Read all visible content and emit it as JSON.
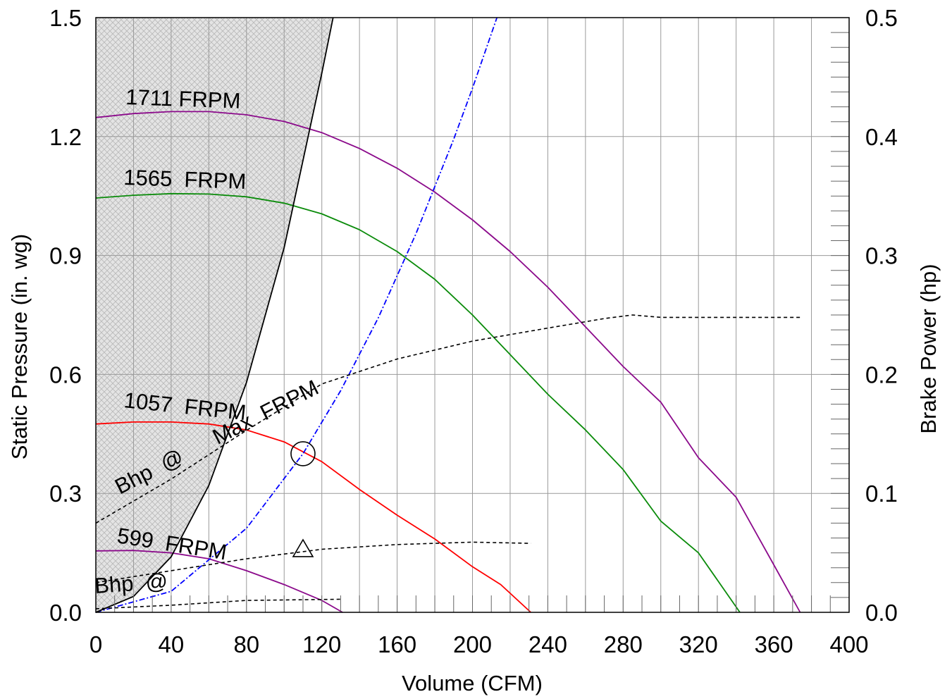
{
  "chart_data": {
    "type": "line",
    "xlabel": "Volume (CFM)",
    "ylabel": "Static Pressure (in. wg)",
    "y2label": "Brake Power (hp)",
    "xlim": [
      0,
      400
    ],
    "ylim": [
      0,
      1.5
    ],
    "y2lim": [
      0,
      0.5
    ],
    "x_ticks": [
      "0",
      "40",
      "80",
      "120",
      "160",
      "200",
      "240",
      "280",
      "320",
      "360",
      "400"
    ],
    "y_ticks": [
      "0.0",
      "0.3",
      "0.6",
      "0.9",
      "1.2",
      "1.5"
    ],
    "y2_ticks": [
      "0.0",
      "0.1",
      "0.2",
      "0.3",
      "0.4",
      "0.5"
    ],
    "grid": true,
    "colors": {
      "rpm_1711": "#8b0a8b",
      "rpm_1565": "#0a8b0a",
      "rpm_1057": "#ff0000",
      "rpm_599": "#8b0a8b",
      "system_curve": "#0000ff",
      "bhp": "#000000",
      "region_fill": "#d8d8d8"
    },
    "series": [
      {
        "key": "rpm_1711",
        "label": "1711 FRPM",
        "axis": "left",
        "x": [
          0,
          20,
          40,
          60,
          80,
          100,
          120,
          140,
          160,
          180,
          200,
          220,
          240,
          260,
          280,
          300,
          320,
          340,
          360,
          374
        ],
        "y": [
          1.248,
          1.258,
          1.263,
          1.263,
          1.255,
          1.238,
          1.21,
          1.17,
          1.12,
          1.06,
          0.99,
          0.91,
          0.82,
          0.72,
          0.62,
          0.53,
          0.39,
          0.29,
          0.12,
          0.0
        ]
      },
      {
        "key": "rpm_1565",
        "label": "1565  FRPM",
        "axis": "left",
        "x": [
          0,
          20,
          40,
          60,
          80,
          100,
          120,
          140,
          160,
          180,
          200,
          220,
          240,
          260,
          280,
          300,
          320,
          342
        ],
        "y": [
          1.045,
          1.052,
          1.056,
          1.055,
          1.048,
          1.032,
          1.005,
          0.965,
          0.91,
          0.84,
          0.75,
          0.65,
          0.55,
          0.46,
          0.36,
          0.23,
          0.15,
          0.0
        ]
      },
      {
        "key": "rpm_1057",
        "label": "1057  FRPM",
        "axis": "left",
        "x": [
          0,
          20,
          40,
          60,
          80,
          100,
          120,
          140,
          160,
          180,
          200,
          215,
          231
        ],
        "y": [
          0.475,
          0.48,
          0.48,
          0.475,
          0.46,
          0.43,
          0.38,
          0.31,
          0.245,
          0.185,
          0.115,
          0.07,
          0.0
        ]
      },
      {
        "key": "rpm_599",
        "label": "599  FRPM",
        "axis": "left",
        "x": [
          0,
          20,
          40,
          60,
          80,
          100,
          120,
          131
        ],
        "y": [
          0.155,
          0.156,
          0.15,
          0.135,
          0.105,
          0.07,
          0.03,
          0.0
        ]
      },
      {
        "key": "system_curve",
        "label": "",
        "axis": "left",
        "x": [
          0,
          40,
          80,
          110,
          130,
          150,
          170,
          190,
          200,
          213
        ],
        "y": [
          0.0,
          0.053,
          0.212,
          0.4,
          0.559,
          0.743,
          0.955,
          1.193,
          1.322,
          1.5
        ]
      },
      {
        "key": "bhp_max",
        "label": "Bhp  @      Max  FRPM",
        "axis": "right",
        "x": [
          0,
          40,
          80,
          120,
          160,
          200,
          240,
          270,
          285,
          300,
          330,
          374
        ],
        "y": [
          0.075,
          0.112,
          0.153,
          0.192,
          0.213,
          0.228,
          0.239,
          0.247,
          0.25,
          0.248,
          0.248,
          0.248
        ]
      },
      {
        "key": "bhp_599",
        "label": "Bhp  @",
        "axis": "right",
        "x": [
          0,
          40,
          80,
          120,
          160,
          200,
          231
        ],
        "y": [
          0.025,
          0.035,
          0.045,
          0.053,
          0.057,
          0.059,
          0.058
        ]
      },
      {
        "key": "bhp_low",
        "label": "",
        "axis": "right",
        "x": [
          0,
          40,
          80,
          131
        ],
        "y": [
          0.003,
          0.006,
          0.01,
          0.011
        ]
      }
    ],
    "region": {
      "label": "",
      "x": [
        0,
        20,
        40,
        60,
        80,
        100,
        120,
        126
      ],
      "y": [
        0.0,
        0.04,
        0.14,
        0.32,
        0.58,
        0.92,
        1.36,
        1.5
      ]
    },
    "markers": [
      {
        "shape": "circle",
        "x": 110,
        "y": 0.4
      },
      {
        "shape": "triangle",
        "x": 110,
        "y": 0.16
      }
    ]
  }
}
